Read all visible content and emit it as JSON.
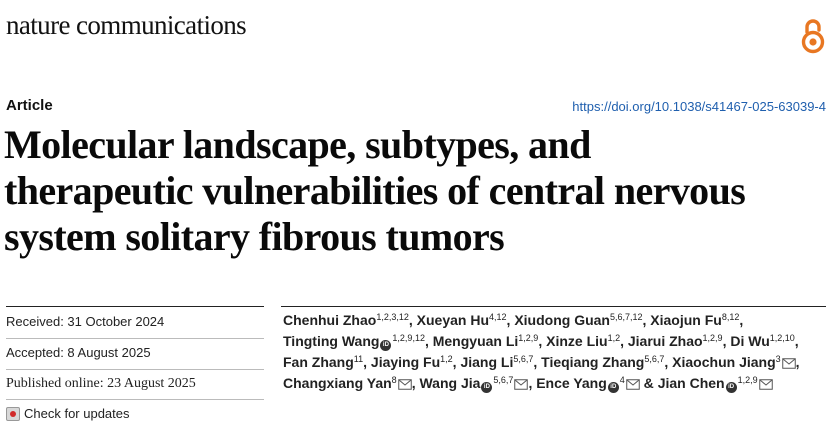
{
  "header": {
    "journal": "nature communications",
    "article_type": "Article",
    "doi": "https://doi.org/10.1038/s41467-025-63039-4",
    "open_access_icon": "open-access-lock-icon",
    "open_access_color": "#e87722"
  },
  "title_lines": [
    "Molecular landscape, subtypes, and",
    "therapeutic vulnerabilities of central nervous",
    "system solitary fibrous tumors"
  ],
  "dates": {
    "received": "Received: 31 October 2024",
    "accepted": "Accepted: 8 August 2025",
    "published": "Published online: 23 August 2025"
  },
  "check_updates": "Check for updates",
  "authors": [
    {
      "name": "Chenhui Zhao",
      "aff": "1,2,3,12"
    },
    {
      "name": "Xueyan Hu",
      "aff": "4,12"
    },
    {
      "name": "Xiudong Guan",
      "aff": "5,6,7,12"
    },
    {
      "name": "Xiaojun Fu",
      "aff": "8,12"
    },
    {
      "name": "Tingting Wang",
      "aff": "1,2,9,12",
      "orcid": true
    },
    {
      "name": "Mengyuan Li",
      "aff": "1,2,9"
    },
    {
      "name": "Xinze Liu",
      "aff": "1,2"
    },
    {
      "name": "Jiarui Zhao",
      "aff": "1,2,9"
    },
    {
      "name": "Di Wu",
      "aff": "1,2,10"
    },
    {
      "name": "Fan Zhang",
      "aff": "11"
    },
    {
      "name": "Jiaying Fu",
      "aff": "1,2"
    },
    {
      "name": "Jiang Li",
      "aff": "5,6,7"
    },
    {
      "name": "Tieqiang Zhang",
      "aff": "5,6,7"
    },
    {
      "name": "Xiaochun Jiang",
      "aff": "3",
      "email": true
    },
    {
      "name": "Changxiang Yan",
      "aff": "8",
      "email": true
    },
    {
      "name": "Wang Jia",
      "aff": "5,6,7",
      "orcid": true,
      "email": true
    },
    {
      "name": "Ence Yang",
      "aff": "4",
      "orcid": true,
      "email": true
    },
    {
      "name": "Jian Chen",
      "aff": "1,2,9",
      "orcid": true,
      "email": true
    }
  ],
  "author_separator": ", ",
  "author_final_joiner": " & ",
  "icons": {
    "orcid": "orcid-icon",
    "email": "envelope-icon"
  }
}
